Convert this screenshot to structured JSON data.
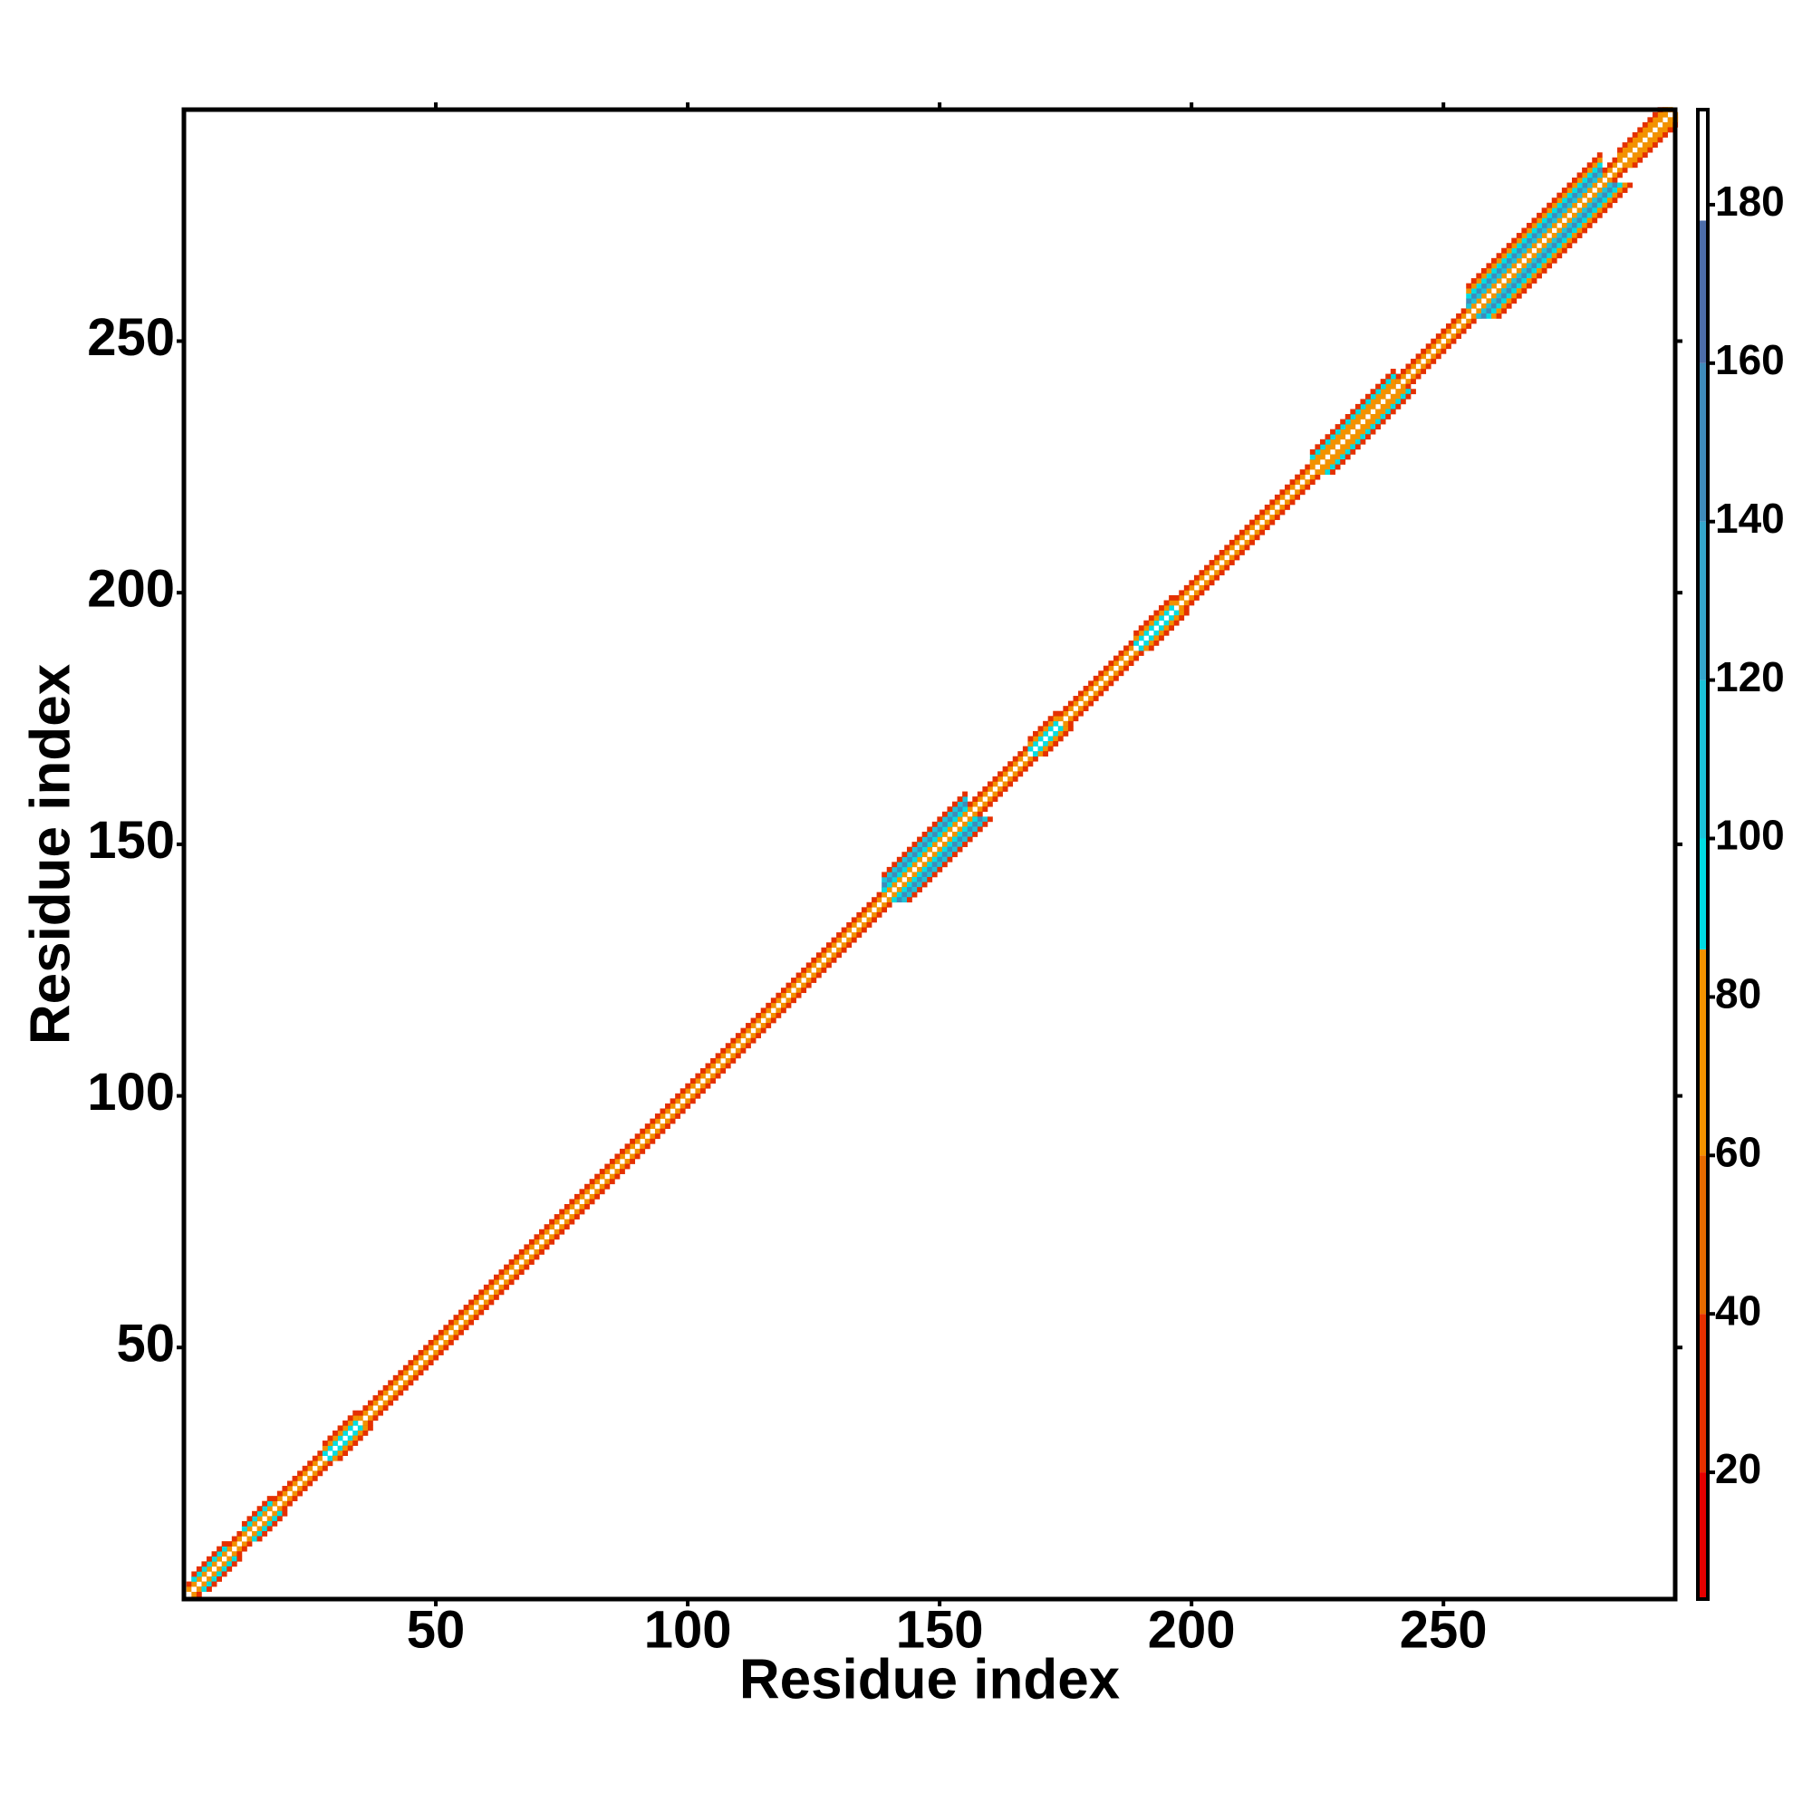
{
  "chart_data": {
    "type": "heatmap",
    "xlabel": "Residue index",
    "ylabel": "Residue index",
    "xlim": [
      0,
      296
    ],
    "ylim": [
      0,
      296
    ],
    "xticks": [
      50,
      100,
      150,
      200,
      250
    ],
    "yticks": [
      50,
      100,
      150,
      200,
      250
    ],
    "bands": [
      {
        "from": 1,
        "to": 295,
        "values": [
          185,
          70,
          25
        ]
      },
      {
        "from": 2,
        "to": 8,
        "values": [
          185,
          70,
          95,
          25
        ]
      },
      {
        "from": 12,
        "to": 17,
        "values": [
          185,
          70,
          95,
          25
        ]
      },
      {
        "from": 28,
        "to": 34,
        "values": [
          185,
          95,
          70,
          30
        ]
      },
      {
        "from": 139,
        "to": 155,
        "values": [
          185,
          70,
          95,
          150,
          110,
          25
        ]
      },
      {
        "from": 168,
        "to": 173,
        "values": [
          185,
          95,
          70,
          25
        ]
      },
      {
        "from": 189,
        "to": 196,
        "values": [
          185,
          95,
          70,
          25
        ]
      },
      {
        "from": 224,
        "to": 240,
        "values": [
          185,
          70,
          70,
          95,
          25
        ]
      },
      {
        "from": 255,
        "to": 281,
        "values": [
          185,
          70,
          110,
          150,
          95,
          70,
          25
        ]
      },
      {
        "from": 285,
        "to": 295,
        "values": [
          185,
          70,
          70,
          25
        ]
      }
    ],
    "colorbar": {
      "clim": [
        4,
        192
      ],
      "ticks": [
        20,
        40,
        60,
        80,
        100,
        120,
        140,
        160,
        180
      ],
      "edges": [
        4,
        20,
        40,
        60,
        86,
        100,
        120,
        140,
        160,
        178,
        192
      ],
      "colors": [
        "#e60000",
        "#e53000",
        "#e56a00",
        "#f29200",
        "#00dde3",
        "#1cc3d9",
        "#35a6cb",
        "#3f8bbb",
        "#4d6da9",
        "#ffffff"
      ]
    }
  }
}
